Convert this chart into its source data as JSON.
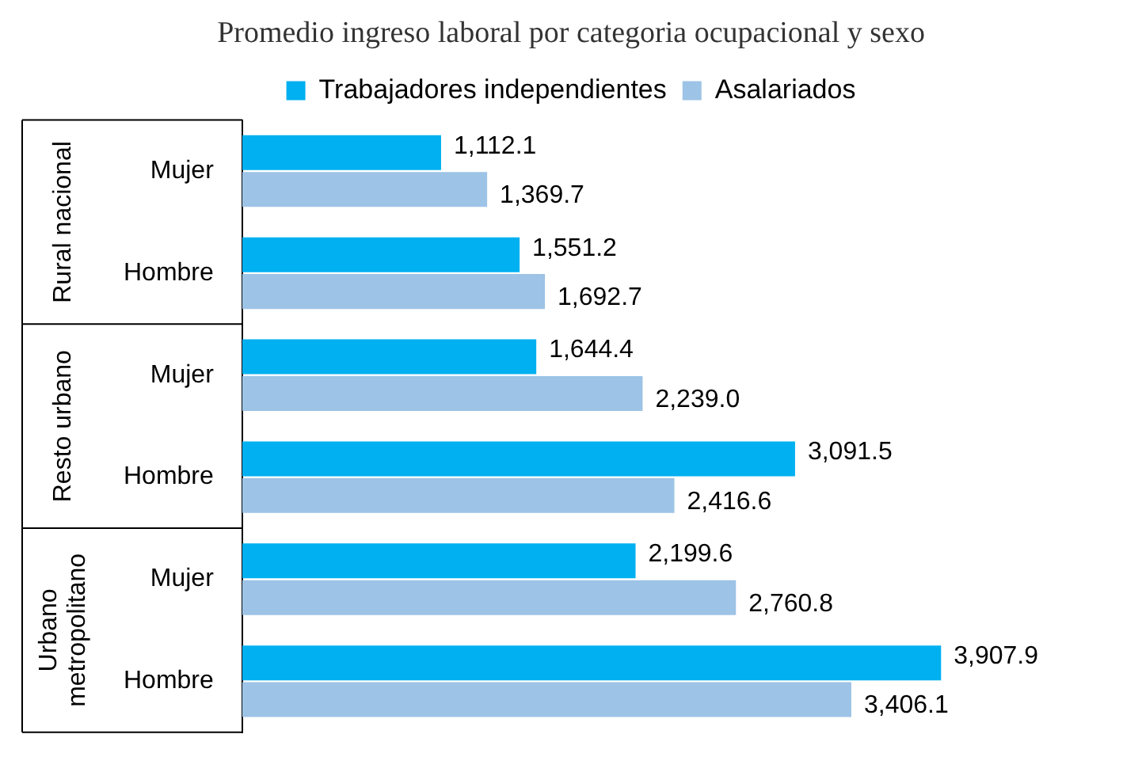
{
  "chart_data": {
    "type": "bar",
    "orientation": "horizontal",
    "title": "Promedio ingreso laboral por categoria ocupacional y sexo",
    "categories": [
      "Mujer",
      "Hombre",
      "Mujer",
      "Hombre",
      "Mujer",
      "Hombre"
    ],
    "series": [
      {
        "name": "Trabajadores independientes",
        "color": "#00b0f0",
        "values": [
          1112.1,
          1551.2,
          1644.4,
          3091.5,
          2199.6,
          3907.9
        ],
        "value_labels": [
          "1,112.1",
          "1,551.2",
          "1,644.4",
          "3,091.5",
          "2,199.6",
          "3,907.9"
        ]
      },
      {
        "name": "Asalariados",
        "color": "#9dc3e6",
        "values": [
          1369.7,
          1692.7,
          2239.0,
          2416.6,
          2760.8,
          3406.1
        ],
        "value_labels": [
          "1,369.7",
          "1,692.7",
          "2,239.0",
          "2,416.6",
          "2,760.8",
          "3,406.1"
        ]
      }
    ],
    "annotations": [
      "Rural nacional",
      "Resto urbano",
      "Urbano metropolitano"
    ],
    "legend": "top",
    "grid": false
  }
}
